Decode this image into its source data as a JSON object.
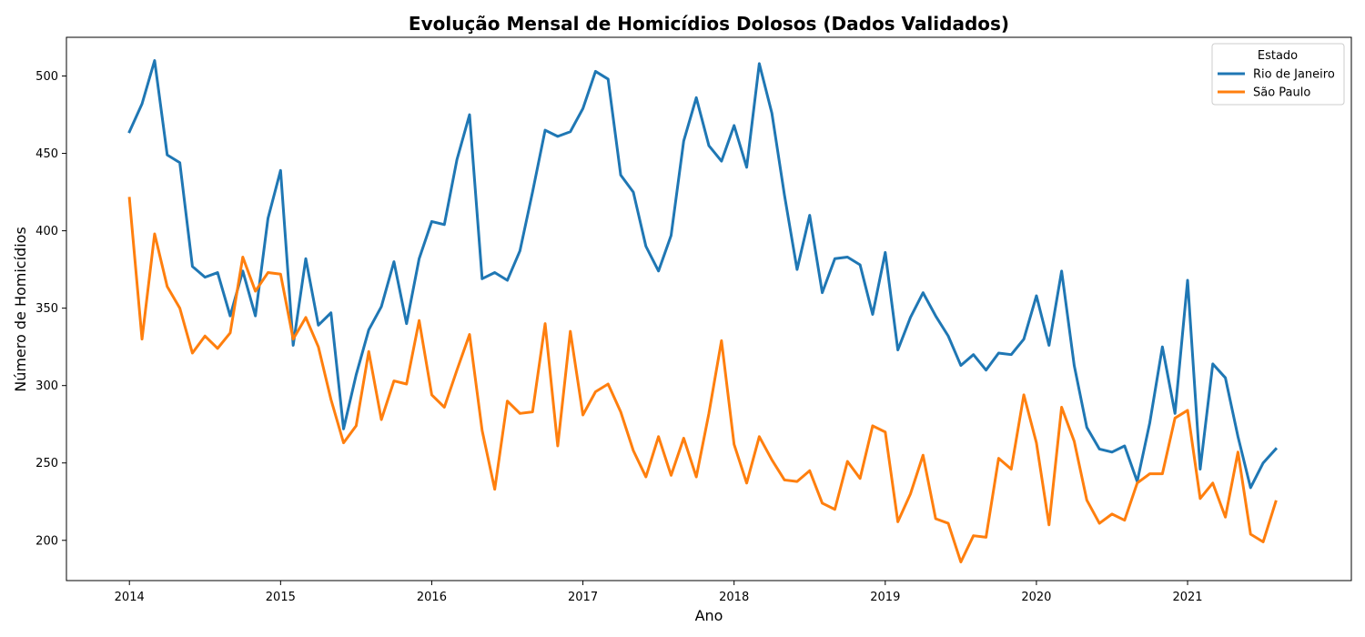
{
  "chart_data": {
    "type": "line",
    "title": "Evolução Mensal de Homicídios Dolosos (Dados Validados)",
    "xlabel": "Ano",
    "ylabel": "Número de Homicídios",
    "x_start": "2014-01",
    "x_step": "1 month",
    "xlim": [
      "2013-08",
      "2022-02"
    ],
    "ylim": [
      174,
      525
    ],
    "x_ticks": [
      "2014",
      "2015",
      "2016",
      "2017",
      "2018",
      "2019",
      "2020",
      "2021"
    ],
    "y_ticks": [
      200,
      250,
      300,
      350,
      400,
      450,
      500
    ],
    "grid": false,
    "legend": {
      "title": "Estado",
      "position": "top-right"
    },
    "series": [
      {
        "name": "Rio de Janeiro",
        "color": "#1f77b4",
        "values": [
          464,
          482,
          510,
          449,
          444,
          377,
          370,
          373,
          345,
          374,
          345,
          408,
          439,
          326,
          382,
          339,
          347,
          272,
          307,
          336,
          351,
          380,
          340,
          382,
          406,
          404,
          446,
          475,
          369,
          373,
          368,
          387,
          425,
          465,
          461,
          464,
          479,
          503,
          498,
          436,
          425,
          390,
          374,
          397,
          458,
          486,
          455,
          445,
          468,
          441,
          508,
          476,
          423,
          375,
          410,
          360,
          382,
          383,
          378,
          346,
          386,
          323,
          344,
          360,
          345,
          332,
          313,
          320,
          310,
          321,
          320,
          330,
          358,
          326,
          374,
          313,
          273,
          259,
          257,
          261,
          238,
          276,
          325,
          282,
          368,
          246,
          314,
          305,
          267,
          234,
          250,
          259
        ]
      },
      {
        "name": "São Paulo",
        "color": "#ff7f0e",
        "values": [
          421,
          330,
          398,
          364,
          350,
          321,
          332,
          324,
          334,
          383,
          361,
          373,
          372,
          330,
          344,
          325,
          291,
          263,
          274,
          322,
          278,
          303,
          301,
          342,
          294,
          286,
          310,
          333,
          271,
          233,
          290,
          282,
          283,
          340,
          261,
          335,
          281,
          296,
          301,
          283,
          258,
          241,
          267,
          242,
          266,
          241,
          282,
          329,
          262,
          237,
          267,
          252,
          239,
          238,
          245,
          224,
          220,
          251,
          240,
          274,
          270,
          212,
          230,
          255,
          214,
          211,
          186,
          203,
          202,
          253,
          246,
          294,
          263,
          210,
          286,
          264,
          226,
          211,
          217,
          213,
          237,
          243,
          243,
          279,
          284,
          227,
          237,
          215,
          257,
          204,
          199,
          225
        ]
      }
    ]
  }
}
